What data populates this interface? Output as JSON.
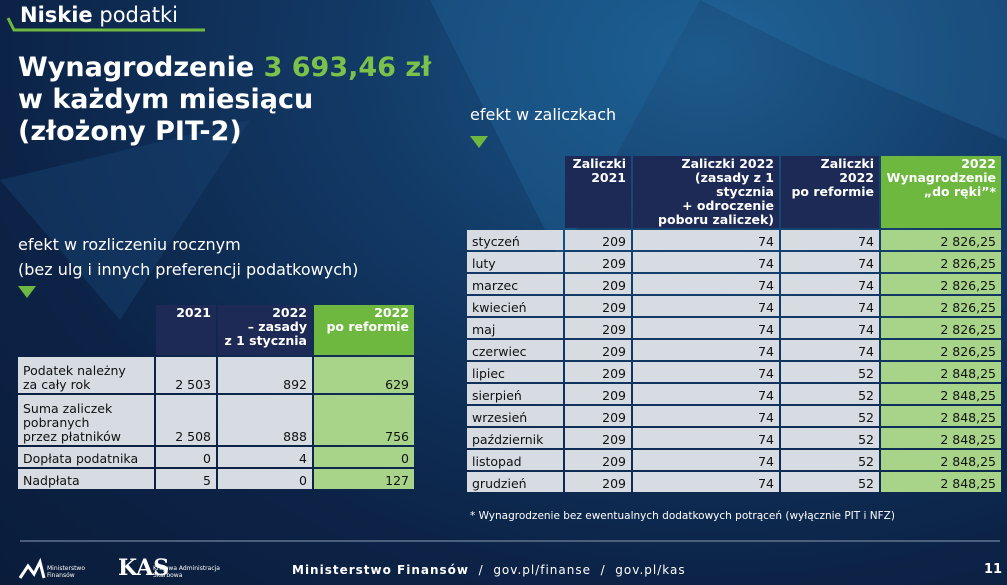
{
  "header": {
    "tag_bold": "Niskie",
    "tag_rest": "podatki"
  },
  "title": {
    "lead": "Wynagrodzenie",
    "amount": "3 693,46 zł",
    "line2": "w każdym miesiącu",
    "line3": "(złożony PIT-2)"
  },
  "annual": {
    "heading": "efekt w rozliczeniu rocznym",
    "subheading": "(bez ulg i innych preferencji podatkowych)",
    "table": {
      "columns": [
        "2021",
        "2022\n– zasady\nz 1 stycznia",
        "2022\npo reformie"
      ],
      "rows": [
        [
          "Podatek należny\nza cały rok",
          "2 503",
          "892",
          "629"
        ],
        [
          "Suma zaliczek\npobranych\nprzez płatników",
          "2 508",
          "888",
          "756"
        ],
        [
          "Dopłata podatnika",
          "0",
          "4",
          "0"
        ],
        [
          "Nadpłata",
          "5",
          "0",
          "127"
        ]
      ]
    }
  },
  "monthly": {
    "heading": "efekt w zaliczkach",
    "table": {
      "columns": [
        "Zaliczki\n2021",
        "Zaliczki 2022\n(zasady z 1 stycznia\n+ odroczenie\npoboru zaliczek)",
        "Zaliczki\n2022\npo reformie",
        "2022\nWynagrodzenie\n„do ręki”*"
      ],
      "rows": [
        [
          "styczeń",
          "209",
          "74",
          "74",
          "2 826,25"
        ],
        [
          "luty",
          "209",
          "74",
          "74",
          "2 826,25"
        ],
        [
          "marzec",
          "209",
          "74",
          "74",
          "2 826,25"
        ],
        [
          "kwiecień",
          "209",
          "74",
          "74",
          "2 826,25"
        ],
        [
          "maj",
          "209",
          "74",
          "74",
          "2 826,25"
        ],
        [
          "czerwiec",
          "209",
          "74",
          "74",
          "2 826,25"
        ],
        [
          "lipiec",
          "209",
          "74",
          "52",
          "2 848,25"
        ],
        [
          "sierpień",
          "209",
          "74",
          "52",
          "2 848,25"
        ],
        [
          "wrzesień",
          "209",
          "74",
          "52",
          "2 848,25"
        ],
        [
          "październik",
          "209",
          "74",
          "52",
          "2 848,25"
        ],
        [
          "listopad",
          "209",
          "74",
          "52",
          "2 848,25"
        ],
        [
          "grudzień",
          "209",
          "74",
          "52",
          "2 848,25"
        ]
      ]
    },
    "footnote": "* Wynagrodzenie bez ewentualnych dodatkowych potrąceń (wyłącznie PIT i NFZ)"
  },
  "footer": {
    "mf_logo": "Ministerstwo\nFinansów",
    "kas_logo": "Krajowa Administracja\nSkarbowa",
    "org": "Ministerstwo Finansów",
    "links": "/  gov.pl/finanse  /  gov.pl/kas",
    "page": "11"
  }
}
